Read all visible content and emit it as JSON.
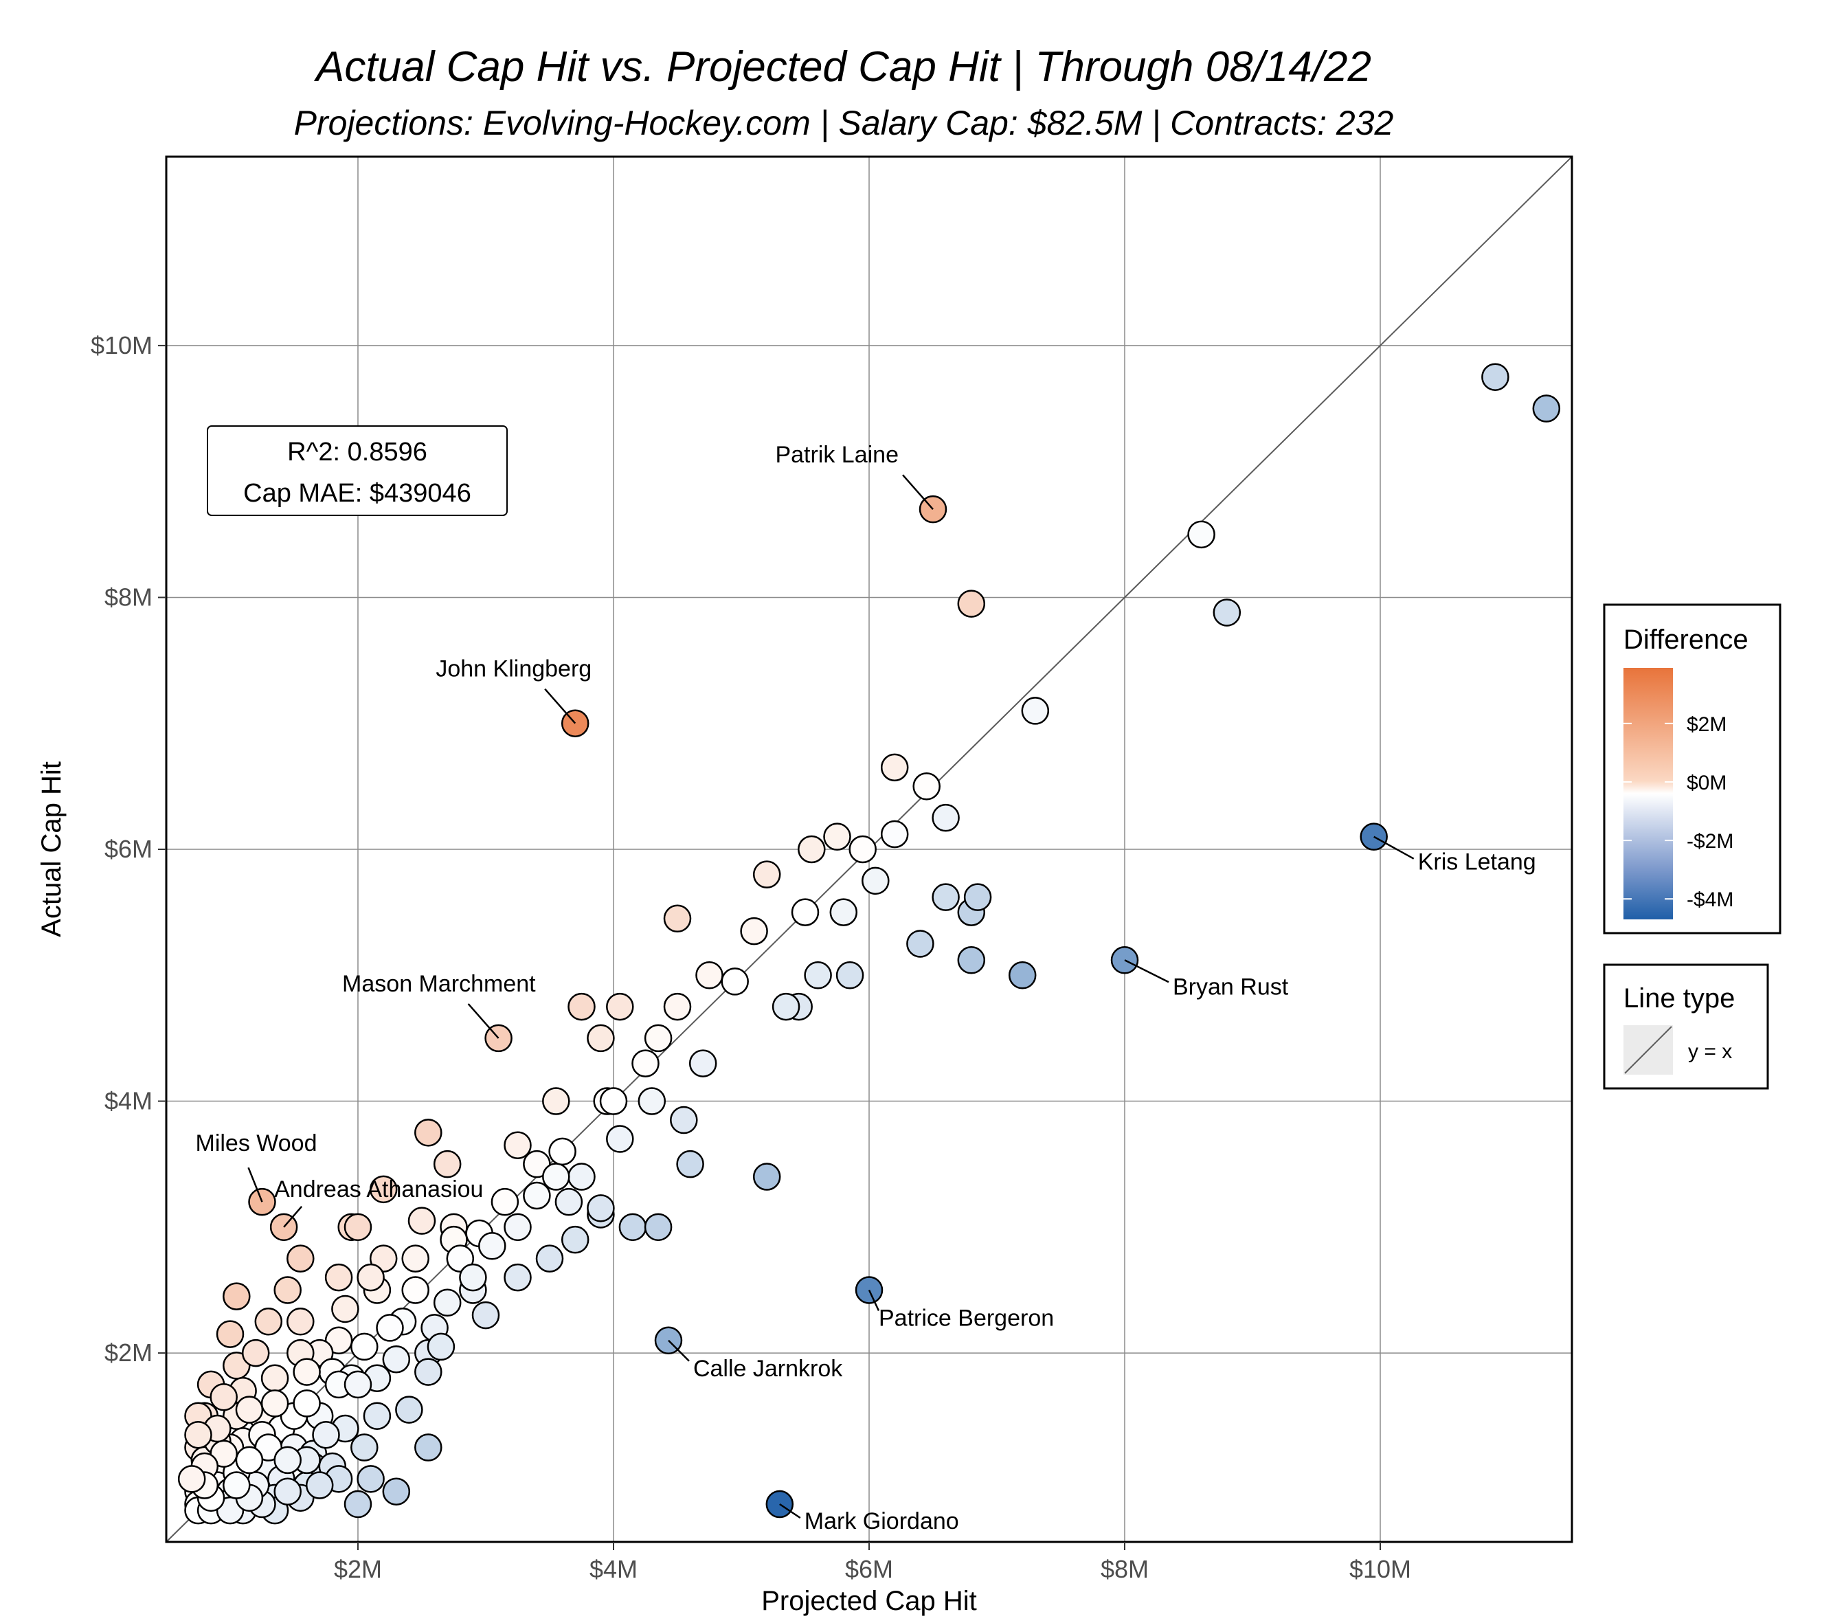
{
  "chart_data": {
    "type": "scatter",
    "title": "Actual Cap Hit vs. Projected Cap Hit | Through 08/14/22",
    "subtitle": "Projections: Evolving-Hockey.com | Salary Cap: $82.5M | Contracts: 232",
    "xlabel": "Projected Cap Hit",
    "ylabel": "Actual Cap Hit",
    "xlim": [
      0.5,
      11.5
    ],
    "ylim": [
      0.5,
      11.5
    ],
    "value_unit": "$M",
    "x_ticks": [
      {
        "value": 2,
        "label": "$2M"
      },
      {
        "value": 4,
        "label": "$4M"
      },
      {
        "value": 6,
        "label": "$6M"
      },
      {
        "value": 8,
        "label": "$8M"
      },
      {
        "value": 10,
        "label": "$10M"
      }
    ],
    "y_ticks": [
      {
        "value": 2,
        "label": "$2M"
      },
      {
        "value": 4,
        "label": "$4M"
      },
      {
        "value": 6,
        "label": "$6M"
      },
      {
        "value": 8,
        "label": "$8M"
      },
      {
        "value": 10,
        "label": "$10M"
      }
    ],
    "grid": true,
    "reference_line": "y = x",
    "stats": {
      "r2": "R^2: 0.8596",
      "mae": "Cap MAE: $439046"
    },
    "color_legend": {
      "title": "Difference",
      "placement": "right",
      "range": [
        -4.7,
        3.9
      ],
      "ticks": [
        {
          "value": 2,
          "label": "$2M"
        },
        {
          "value": 0,
          "label": "$0M"
        },
        {
          "value": -2,
          "label": "-$2M"
        },
        {
          "value": -4,
          "label": "-$4M"
        }
      ],
      "colors": {
        "negative": "#1f5fa8",
        "zero": "#ffffff",
        "positive": "#e8743b"
      }
    },
    "line_legend": {
      "title": "Line type",
      "label": "y = x"
    },
    "labeled_points": [
      {
        "name": "Patrik Laine",
        "x": 6.5,
        "y": 8.7
      },
      {
        "name": "John Klingberg",
        "x": 3.7,
        "y": 7.0
      },
      {
        "name": "Kris Letang",
        "x": 9.95,
        "y": 6.1
      },
      {
        "name": "Bryan Rust",
        "x": 8.0,
        "y": 5.12
      },
      {
        "name": "Mason Marchment",
        "x": 3.1,
        "y": 4.5
      },
      {
        "name": "Miles Wood",
        "x": 1.25,
        "y": 3.2
      },
      {
        "name": "Andreas Athanasiou",
        "x": 1.42,
        "y": 3.0
      },
      {
        "name": "Patrice Bergeron",
        "x": 6.0,
        "y": 2.5
      },
      {
        "name": "Calle Jarnkrok",
        "x": 4.43,
        "y": 2.1
      },
      {
        "name": "Mark Giordano",
        "x": 5.3,
        "y": 0.8
      }
    ],
    "points": [
      [
        10.9,
        9.75
      ],
      [
        11.3,
        9.5
      ],
      [
        8.6,
        8.5
      ],
      [
        8.8,
        7.88
      ],
      [
        6.8,
        7.95
      ],
      [
        6.2,
        6.65
      ],
      [
        6.45,
        6.5
      ],
      [
        6.2,
        6.12
      ],
      [
        5.95,
        6.0
      ],
      [
        5.75,
        6.1
      ],
      [
        5.55,
        6.0
      ],
      [
        5.2,
        5.8
      ],
      [
        4.5,
        5.45
      ],
      [
        5.8,
        5.5
      ],
      [
        6.6,
        5.62
      ],
      [
        6.8,
        5.5
      ],
      [
        6.85,
        5.62
      ],
      [
        6.4,
        5.25
      ],
      [
        6.8,
        5.12
      ],
      [
        7.2,
        5.0
      ],
      [
        5.6,
        5.0
      ],
      [
        5.85,
        5.0
      ],
      [
        5.45,
        4.75
      ],
      [
        5.35,
        4.75
      ],
      [
        4.75,
        5.0
      ],
      [
        4.5,
        4.75
      ],
      [
        4.05,
        4.75
      ],
      [
        3.75,
        4.75
      ],
      [
        3.9,
        4.5
      ],
      [
        4.35,
        4.5
      ],
      [
        4.25,
        4.3
      ],
      [
        3.55,
        4.0
      ],
      [
        3.95,
        4.0
      ],
      [
        4.0,
        4.0
      ],
      [
        4.3,
        4.0
      ],
      [
        2.55,
        3.75
      ],
      [
        2.7,
        3.5
      ],
      [
        3.25,
        3.65
      ],
      [
        3.4,
        3.5
      ],
      [
        4.6,
        3.5
      ],
      [
        5.2,
        3.4
      ],
      [
        3.75,
        3.4
      ],
      [
        3.4,
        3.25
      ],
      [
        3.65,
        3.2
      ],
      [
        3.9,
        3.1
      ],
      [
        3.9,
        3.15
      ],
      [
        4.15,
        3.0
      ],
      [
        4.35,
        3.0
      ],
      [
        3.25,
        3.0
      ],
      [
        2.95,
        2.95
      ],
      [
        2.75,
        3.0
      ],
      [
        2.75,
        2.9
      ],
      [
        1.95,
        3.0
      ],
      [
        2.0,
        3.0
      ],
      [
        2.2,
        2.75
      ],
      [
        2.45,
        2.75
      ],
      [
        2.8,
        2.75
      ],
      [
        1.55,
        2.75
      ],
      [
        3.5,
        2.75
      ],
      [
        3.25,
        2.6
      ],
      [
        2.9,
        2.5
      ],
      [
        2.15,
        2.5
      ],
      [
        1.45,
        2.5
      ],
      [
        1.05,
        2.45
      ],
      [
        2.35,
        2.25
      ],
      [
        2.25,
        2.2
      ],
      [
        2.6,
        2.2
      ],
      [
        1.55,
        2.25
      ],
      [
        1.85,
        2.1
      ],
      [
        1.7,
        2.0
      ],
      [
        1.55,
        2.0
      ],
      [
        2.55,
        2.0
      ],
      [
        1.05,
        1.9
      ],
      [
        1.35,
        1.8
      ],
      [
        1.8,
        1.85
      ],
      [
        1.95,
        1.8
      ],
      [
        2.15,
        1.8
      ],
      [
        2.55,
        1.85
      ],
      [
        1.85,
        1.75
      ],
      [
        2.0,
        1.75
      ],
      [
        1.1,
        1.7
      ],
      [
        1.9,
        1.4
      ],
      [
        1.7,
        1.5
      ],
      [
        2.15,
        1.5
      ],
      [
        1.25,
        1.5
      ],
      [
        1.4,
        1.4
      ],
      [
        1.05,
        1.5
      ],
      [
        0.8,
        1.5
      ],
      [
        0.75,
        1.5
      ],
      [
        1.1,
        1.3
      ],
      [
        1.0,
        1.25
      ],
      [
        0.75,
        1.25
      ],
      [
        1.5,
        1.25
      ],
      [
        2.55,
        1.25
      ],
      [
        1.65,
        1.2
      ],
      [
        0.8,
        1.15
      ],
      [
        0.95,
        1.1
      ],
      [
        1.65,
        1.1
      ],
      [
        1.8,
        1.1
      ],
      [
        1.3,
        1.1
      ],
      [
        1.1,
        1.0
      ],
      [
        1.4,
        1.0
      ],
      [
        1.85,
        1.0
      ],
      [
        2.1,
        1.0
      ],
      [
        1.6,
        0.95
      ],
      [
        0.9,
        0.95
      ],
      [
        0.75,
        0.9
      ],
      [
        1.0,
        0.9
      ],
      [
        1.35,
        0.85
      ],
      [
        1.55,
        0.85
      ],
      [
        0.75,
        0.8
      ],
      [
        0.95,
        0.8
      ],
      [
        1.1,
        0.75
      ],
      [
        1.35,
        0.75
      ],
      [
        0.75,
        0.75
      ],
      [
        0.85,
        0.75
      ],
      [
        1.0,
        0.75
      ],
      [
        1.25,
        0.8
      ],
      [
        0.85,
        0.85
      ],
      [
        1.2,
        0.95
      ],
      [
        1.45,
        0.9
      ],
      [
        2.0,
        0.8
      ],
      [
        1.05,
        1.05
      ],
      [
        0.9,
        1.3
      ],
      [
        1.25,
        1.35
      ],
      [
        1.6,
        1.15
      ],
      [
        1.15,
        0.85
      ],
      [
        0.95,
        1.2
      ],
      [
        1.7,
        0.95
      ],
      [
        2.3,
        0.9
      ],
      [
        1.3,
        1.25
      ],
      [
        1.15,
        1.15
      ],
      [
        1.5,
        1.5
      ],
      [
        0.8,
        1.1
      ],
      [
        0.9,
        1.4
      ],
      [
        1.75,
        1.35
      ],
      [
        2.05,
        1.25
      ],
      [
        1.35,
        1.6
      ],
      [
        1.6,
        1.6
      ],
      [
        2.4,
        1.55
      ],
      [
        2.05,
        2.05
      ],
      [
        2.3,
        1.95
      ],
      [
        1.2,
        2.0
      ],
      [
        0.85,
        1.75
      ],
      [
        0.8,
        0.95
      ],
      [
        1.05,
        0.95
      ],
      [
        1.45,
        1.15
      ],
      [
        2.7,
        2.4
      ],
      [
        3.0,
        2.3
      ],
      [
        3.15,
        3.2
      ],
      [
        3.55,
        3.4
      ],
      [
        2.2,
        3.3
      ],
      [
        2.45,
        2.5
      ],
      [
        2.9,
        2.6
      ],
      [
        1.9,
        2.35
      ],
      [
        2.65,
        2.05
      ],
      [
        3.05,
        2.85
      ],
      [
        3.7,
        2.9
      ],
      [
        4.05,
        3.7
      ],
      [
        4.7,
        4.3
      ],
      [
        4.95,
        4.95
      ],
      [
        5.1,
        5.35
      ],
      [
        5.5,
        5.5
      ],
      [
        6.05,
        5.75
      ],
      [
        6.6,
        6.25
      ],
      [
        7.3,
        7.1
      ],
      [
        4.55,
        3.85
      ],
      [
        3.6,
        3.6
      ],
      [
        2.5,
        3.05
      ],
      [
        1.85,
        2.6
      ],
      [
        1.6,
        1.85
      ],
      [
        1.15,
        1.55
      ],
      [
        0.95,
        1.65
      ],
      [
        0.75,
        1.35
      ],
      [
        0.7,
        1.0
      ],
      [
        1.0,
        2.15
      ],
      [
        1.3,
        2.25
      ],
      [
        2.1,
        2.6
      ]
    ]
  }
}
